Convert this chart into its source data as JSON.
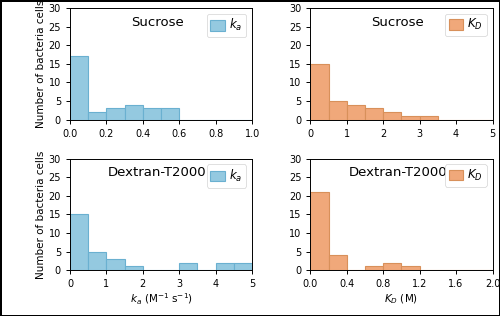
{
  "sucrose_ka_counts": [
    17,
    2,
    3,
    4,
    3,
    3,
    0,
    0,
    0,
    0
  ],
  "sucrose_ka_bins": [
    0.0,
    0.1,
    0.2,
    0.3,
    0.4,
    0.5,
    0.6,
    0.7,
    0.8,
    0.9,
    1.0
  ],
  "sucrose_ka_xlim": [
    0,
    1.0
  ],
  "sucrose_ka_xticks": [
    0,
    0.2,
    0.4,
    0.6,
    0.8,
    1.0
  ],
  "sucrose_KD_counts": [
    15,
    5,
    4,
    3,
    2,
    1,
    1,
    0,
    0,
    0
  ],
  "sucrose_KD_bins": [
    0.0,
    0.5,
    1.0,
    1.5,
    2.0,
    2.5,
    3.0,
    3.5,
    4.0,
    4.5,
    5.0
  ],
  "sucrose_KD_xlim": [
    0,
    5
  ],
  "sucrose_KD_xticks": [
    0,
    1,
    2,
    3,
    4,
    5
  ],
  "dextran_ka_counts": [
    15,
    5,
    3,
    1,
    0,
    0,
    2,
    0,
    2,
    2
  ],
  "dextran_ka_bins": [
    0.0,
    0.5,
    1.0,
    1.5,
    2.0,
    2.5,
    3.0,
    3.5,
    4.0,
    4.5,
    5.0
  ],
  "dextran_ka_xlim": [
    0,
    5
  ],
  "dextran_ka_xticks": [
    0,
    1,
    2,
    3,
    4,
    5
  ],
  "dextran_KD_counts": [
    21,
    4,
    0,
    1,
    2,
    1,
    0,
    0,
    0,
    0
  ],
  "dextran_KD_bins": [
    0.0,
    0.2,
    0.4,
    0.6,
    0.8,
    1.0,
    1.2,
    1.4,
    1.6,
    1.8,
    2.0
  ],
  "dextran_KD_xlim": [
    0,
    2.0
  ],
  "dextran_KD_xticks": [
    0,
    0.4,
    0.8,
    1.2,
    1.6,
    2.0
  ],
  "ylim": [
    0,
    30
  ],
  "yticks": [
    0,
    5,
    10,
    15,
    20,
    25,
    30
  ],
  "titles": [
    "Sucrose",
    "Sucrose",
    "Dextran-T2000",
    "Dextran-T2000"
  ],
  "legends": [
    "$k_a$",
    "$K_D$",
    "$k_a$",
    "$K_D$"
  ],
  "ka_xlabel": "$k_a$ (M$^{-1}$ s$^{-1}$)",
  "KD_xlabel": "$K_D$ (M)",
  "ylabel": "Number of bacteria cells",
  "blue_color": "#94c9e0",
  "orange_color": "#f0a87a",
  "blue_edge": "#6ab0d0",
  "orange_edge": "#d8905a",
  "label_fontsize": 7.5,
  "tick_fontsize": 7,
  "title_fontsize": 9.5,
  "legend_fontsize": 8.5
}
